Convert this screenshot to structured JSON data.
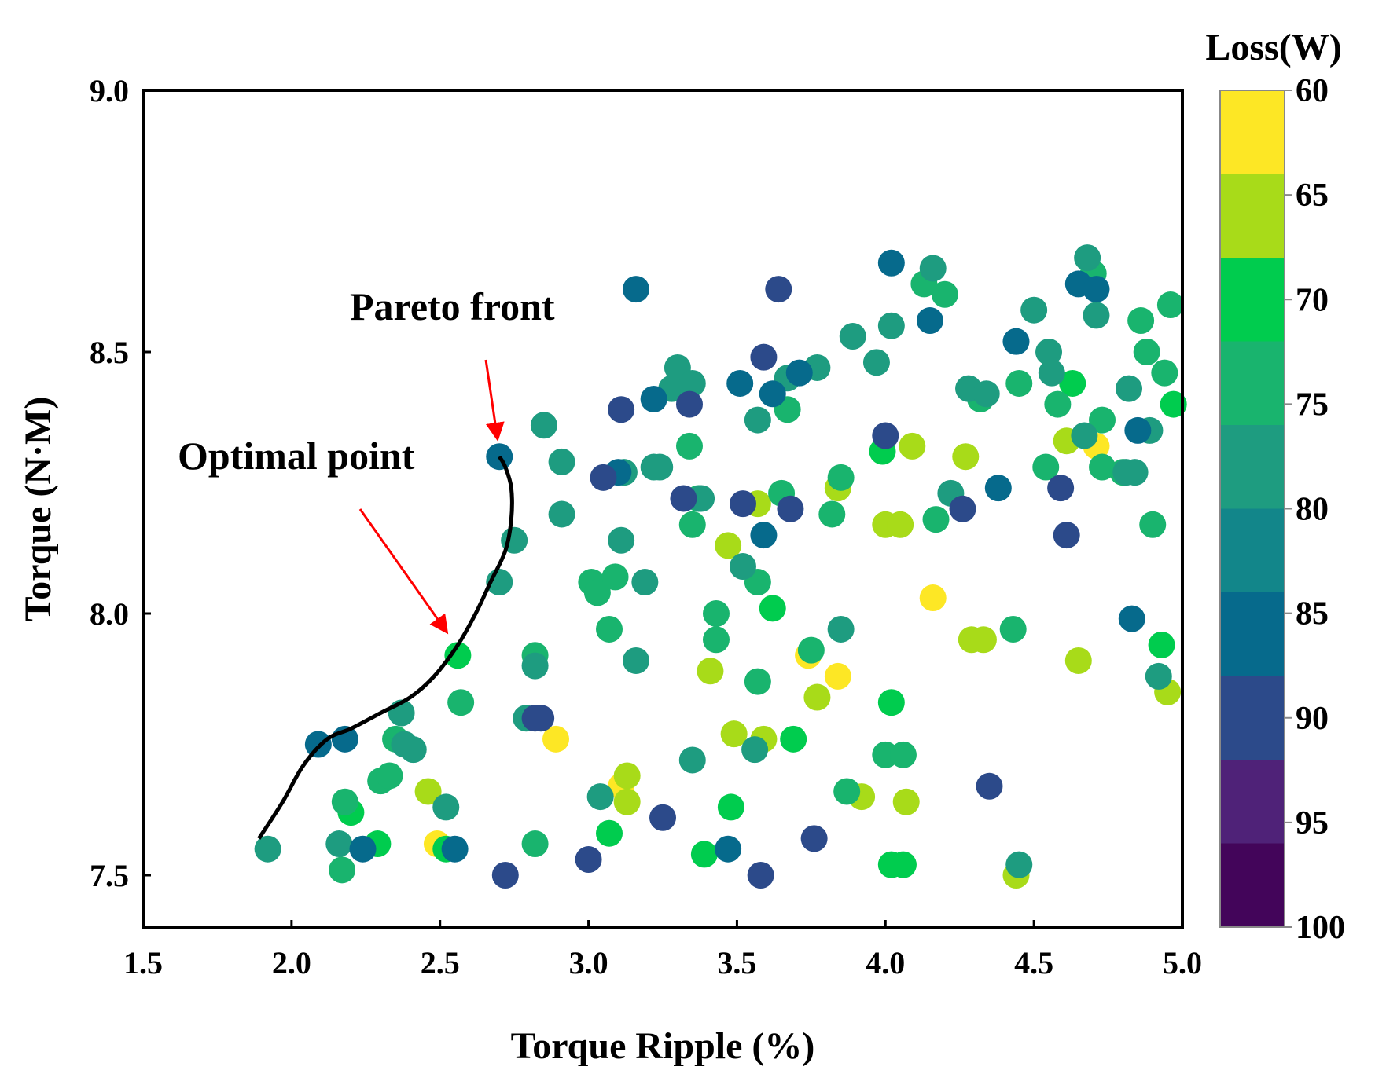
{
  "chart_data": {
    "type": "scatter",
    "title": "",
    "xlabel": "Torque Ripple (%)",
    "ylabel": "Torque (N·M)",
    "xlim": [
      1.5,
      5.0
    ],
    "ylim": [
      7.4,
      9.0
    ],
    "xticks": [
      "1.5",
      "2.0",
      "2.5",
      "3.0",
      "3.5",
      "4.0",
      "4.5",
      "5.0"
    ],
    "yticks": [
      "7.5",
      "8.0",
      "8.5",
      "9.0"
    ],
    "colorbar": {
      "title": "Loss(W)",
      "labels": [
        "60",
        "65",
        "70",
        "75",
        "80",
        "85",
        "90",
        "95",
        "100"
      ],
      "colors": [
        "#fde725",
        "#a8db19",
        "#00cc4e",
        "#19b46e",
        "#1e9c80",
        "#12868a",
        "#066a8c",
        "#2c4a8a",
        "#4f2278",
        "#43055a"
      ]
    },
    "annotations": [
      {
        "text": "Pareto front",
        "x": 2.7,
        "y": 8.3
      },
      {
        "text": "Optimal point",
        "x": 2.55,
        "y": 7.92
      }
    ],
    "pareto_front": [
      [
        1.89,
        7.57
      ],
      [
        1.97,
        7.64
      ],
      [
        2.04,
        7.71
      ],
      [
        2.12,
        7.76
      ],
      [
        2.2,
        7.78
      ],
      [
        2.3,
        7.81
      ],
      [
        2.4,
        7.84
      ],
      [
        2.48,
        7.88
      ],
      [
        2.56,
        7.94
      ],
      [
        2.62,
        8.0
      ],
      [
        2.67,
        8.06
      ],
      [
        2.72,
        8.12
      ],
      [
        2.74,
        8.18
      ],
      [
        2.74,
        8.24
      ],
      [
        2.72,
        8.28
      ],
      [
        2.7,
        8.3
      ]
    ],
    "series": [
      {
        "name": "Loss 60",
        "color": "#fde725",
        "points": [
          [
            2.89,
            7.76
          ],
          [
            2.49,
            7.56
          ],
          [
            3.74,
            7.92
          ],
          [
            3.84,
            7.88
          ],
          [
            4.16,
            8.03
          ],
          [
            4.71,
            8.32
          ],
          [
            3.11,
            7.67
          ]
        ]
      },
      {
        "name": "Loss 65",
        "color": "#a8db19",
        "points": [
          [
            2.46,
            7.66
          ],
          [
            3.13,
            7.69
          ],
          [
            3.13,
            7.64
          ],
          [
            3.41,
            7.89
          ],
          [
            3.49,
            7.77
          ],
          [
            3.59,
            7.76
          ],
          [
            3.77,
            7.84
          ],
          [
            3.92,
            7.65
          ],
          [
            3.47,
            8.13
          ],
          [
            3.57,
            8.21
          ],
          [
            3.84,
            8.24
          ],
          [
            4.0,
            8.17
          ],
          [
            4.05,
            8.17
          ],
          [
            4.09,
            8.32
          ],
          [
            4.27,
            8.3
          ],
          [
            4.29,
            7.95
          ],
          [
            4.33,
            7.95
          ],
          [
            4.65,
            7.91
          ],
          [
            4.61,
            8.33
          ],
          [
            4.95,
            7.85
          ],
          [
            4.07,
            7.64
          ],
          [
            4.44,
            7.5
          ]
        ]
      },
      {
        "name": "Loss 70",
        "color": "#00cc4e",
        "points": [
          [
            2.56,
            7.92
          ],
          [
            2.29,
            7.56
          ],
          [
            2.2,
            7.62
          ],
          [
            2.52,
            7.55
          ],
          [
            3.07,
            7.58
          ],
          [
            3.39,
            7.54
          ],
          [
            3.48,
            7.63
          ],
          [
            3.62,
            8.01
          ],
          [
            3.69,
            7.76
          ],
          [
            4.02,
            7.83
          ],
          [
            4.02,
            7.52
          ],
          [
            4.06,
            7.52
          ],
          [
            3.99,
            8.31
          ],
          [
            4.63,
            8.44
          ],
          [
            4.97,
            8.4
          ],
          [
            4.93,
            7.94
          ]
        ]
      },
      {
        "name": "Loss 75",
        "color": "#19b46e",
        "points": [
          [
            2.17,
            7.51
          ],
          [
            2.3,
            7.68
          ],
          [
            2.33,
            7.69
          ],
          [
            2.35,
            7.76
          ],
          [
            2.57,
            7.83
          ],
          [
            2.82,
            7.92
          ],
          [
            3.01,
            8.06
          ],
          [
            3.03,
            8.04
          ],
          [
            3.07,
            7.97
          ],
          [
            3.09,
            8.07
          ],
          [
            3.37,
            8.22
          ],
          [
            3.35,
            8.17
          ],
          [
            3.43,
            7.95
          ],
          [
            3.43,
            8.0
          ],
          [
            3.57,
            8.06
          ],
          [
            3.57,
            7.87
          ],
          [
            3.65,
            8.23
          ],
          [
            3.67,
            8.39
          ],
          [
            3.75,
            7.93
          ],
          [
            3.82,
            8.19
          ],
          [
            3.85,
            8.26
          ],
          [
            3.87,
            7.66
          ],
          [
            4.0,
            7.73
          ],
          [
            4.06,
            7.73
          ],
          [
            4.17,
            8.18
          ],
          [
            4.2,
            8.61
          ],
          [
            4.13,
            8.63
          ],
          [
            4.32,
            8.41
          ],
          [
            4.45,
            8.44
          ],
          [
            4.58,
            8.4
          ],
          [
            4.73,
            8.37
          ],
          [
            4.73,
            8.28
          ],
          [
            4.8,
            8.27
          ],
          [
            4.86,
            8.56
          ],
          [
            4.88,
            8.5
          ],
          [
            4.94,
            8.46
          ],
          [
            4.96,
            8.59
          ],
          [
            4.7,
            8.65
          ],
          [
            4.54,
            8.28
          ],
          [
            4.9,
            8.17
          ],
          [
            4.43,
            7.97
          ],
          [
            2.18,
            7.64
          ],
          [
            2.82,
            7.56
          ],
          [
            3.34,
            8.32
          ]
        ]
      },
      {
        "name": "Loss 80",
        "color": "#1e9c80",
        "points": [
          [
            2.7,
            8.06
          ],
          [
            2.75,
            8.14
          ],
          [
            2.37,
            7.81
          ],
          [
            2.38,
            7.75
          ],
          [
            2.52,
            7.63
          ],
          [
            2.82,
            7.9
          ],
          [
            2.79,
            7.8
          ],
          [
            3.04,
            7.65
          ],
          [
            3.11,
            8.14
          ],
          [
            3.19,
            8.06
          ],
          [
            3.24,
            8.28
          ],
          [
            3.28,
            8.43
          ],
          [
            3.3,
            8.47
          ],
          [
            3.35,
            8.44
          ],
          [
            3.38,
            8.22
          ],
          [
            3.52,
            8.09
          ],
          [
            3.56,
            7.74
          ],
          [
            3.57,
            8.37
          ],
          [
            3.67,
            8.45
          ],
          [
            3.77,
            8.47
          ],
          [
            3.89,
            8.53
          ],
          [
            3.97,
            8.48
          ],
          [
            4.02,
            8.55
          ],
          [
            4.22,
            8.23
          ],
          [
            4.28,
            8.43
          ],
          [
            4.34,
            8.42
          ],
          [
            4.5,
            8.58
          ],
          [
            4.55,
            8.5
          ],
          [
            4.56,
            8.46
          ],
          [
            4.67,
            8.34
          ],
          [
            4.71,
            8.57
          ],
          [
            4.81,
            8.27
          ],
          [
            4.84,
            8.27
          ],
          [
            4.92,
            7.88
          ],
          [
            4.45,
            7.52
          ],
          [
            2.85,
            8.36
          ],
          [
            2.91,
            8.29
          ],
          [
            2.91,
            8.19
          ],
          [
            3.12,
            8.27
          ],
          [
            3.22,
            8.28
          ],
          [
            3.85,
            7.97
          ],
          [
            3.16,
            7.91
          ],
          [
            3.35,
            7.72
          ],
          [
            2.41,
            7.74
          ],
          [
            2.16,
            7.56
          ],
          [
            1.92,
            7.55
          ],
          [
            4.16,
            8.66
          ],
          [
            4.68,
            8.68
          ],
          [
            4.82,
            8.43
          ],
          [
            4.89,
            8.35
          ]
        ]
      },
      {
        "name": "Loss 85",
        "color": "#066a8c",
        "points": [
          [
            2.7,
            8.3
          ],
          [
            2.09,
            7.75
          ],
          [
            2.18,
            7.76
          ],
          [
            2.24,
            7.55
          ],
          [
            3.16,
            8.62
          ],
          [
            3.51,
            8.44
          ],
          [
            3.62,
            8.42
          ],
          [
            3.59,
            8.15
          ],
          [
            3.71,
            8.46
          ],
          [
            3.22,
            8.41
          ],
          [
            3.1,
            8.27
          ],
          [
            4.02,
            8.67
          ],
          [
            4.15,
            8.56
          ],
          [
            4.38,
            8.24
          ],
          [
            4.44,
            8.52
          ],
          [
            4.65,
            8.63
          ],
          [
            4.71,
            8.62
          ],
          [
            4.83,
            7.99
          ],
          [
            4.85,
            8.35
          ],
          [
            3.47,
            7.55
          ],
          [
            2.55,
            7.55
          ]
        ]
      },
      {
        "name": "Loss 90",
        "color": "#2c4a8a",
        "points": [
          [
            3.11,
            8.39
          ],
          [
            3.05,
            8.26
          ],
          [
            3.34,
            8.4
          ],
          [
            3.32,
            8.22
          ],
          [
            3.52,
            8.21
          ],
          [
            3.59,
            8.49
          ],
          [
            3.64,
            8.62
          ],
          [
            3.68,
            8.2
          ],
          [
            2.84,
            7.8
          ],
          [
            2.82,
            7.8
          ],
          [
            3.0,
            7.53
          ],
          [
            2.72,
            7.5
          ],
          [
            3.25,
            7.61
          ],
          [
            3.58,
            7.5
          ],
          [
            3.76,
            7.57
          ],
          [
            4.0,
            8.34
          ],
          [
            4.26,
            8.2
          ],
          [
            4.35,
            7.67
          ],
          [
            4.59,
            8.24
          ],
          [
            4.61,
            8.15
          ]
        ]
      }
    ]
  }
}
